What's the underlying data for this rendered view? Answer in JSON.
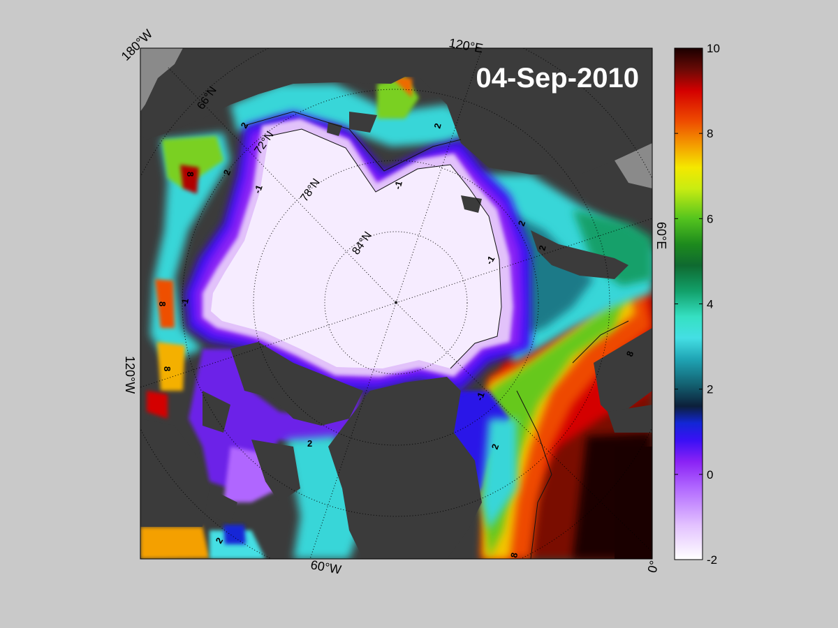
{
  "map": {
    "date_label": "04-Sep-2010",
    "lon_labels": {
      "w180": "180°W",
      "e120": "120°E",
      "e60": "60°E",
      "w120": "120°W",
      "w60": "60°W",
      "zero": "0°"
    },
    "lat_labels": {
      "n66": "66°N",
      "n72": "72°N",
      "n78": "78°N",
      "n84": "84°N"
    },
    "contour_labels": {
      "minus1": "-1",
      "two": "2",
      "eight": "8"
    },
    "pole_marker": "*"
  },
  "colorbar": {
    "min": -2,
    "max": 10,
    "ticks": [
      "10",
      "8",
      "6",
      "4",
      "2",
      "0",
      "-2"
    ],
    "stops": [
      {
        "v": -2,
        "color": "#ffffff"
      },
      {
        "v": -1.2,
        "color": "#e3c2ff"
      },
      {
        "v": -0.3,
        "color": "#b066ff"
      },
      {
        "v": 0.3,
        "color": "#8a22f5"
      },
      {
        "v": 0.8,
        "color": "#3a10f5"
      },
      {
        "v": 1.2,
        "color": "#1226d6"
      },
      {
        "v": 1.6,
        "color": "#0c1f3a"
      },
      {
        "v": 2.1,
        "color": "#136070"
      },
      {
        "v": 2.7,
        "color": "#1fa4b4"
      },
      {
        "v": 3.2,
        "color": "#44dfe4"
      },
      {
        "v": 3.7,
        "color": "#35e0c2"
      },
      {
        "v": 4.3,
        "color": "#12a06a"
      },
      {
        "v": 4.9,
        "color": "#0f6a30"
      },
      {
        "v": 5.4,
        "color": "#1d8a1d"
      },
      {
        "v": 6,
        "color": "#54c41e"
      },
      {
        "v": 6.7,
        "color": "#c8ec12"
      },
      {
        "v": 7.2,
        "color": "#f4e800"
      },
      {
        "v": 7.7,
        "color": "#f4a000"
      },
      {
        "v": 8.3,
        "color": "#ee4a00"
      },
      {
        "v": 9,
        "color": "#d40000"
      },
      {
        "v": 9.5,
        "color": "#6a0a06"
      },
      {
        "v": 10,
        "color": "#1a0000"
      }
    ]
  },
  "colors": {
    "page_background": "#c9c9c9",
    "land": "#3b3b3b",
    "no_data": "#8a8a8a",
    "ice_core": "#f6ecff",
    "ice_edge": "#e2c2fa",
    "date_text": "#ffffff"
  }
}
